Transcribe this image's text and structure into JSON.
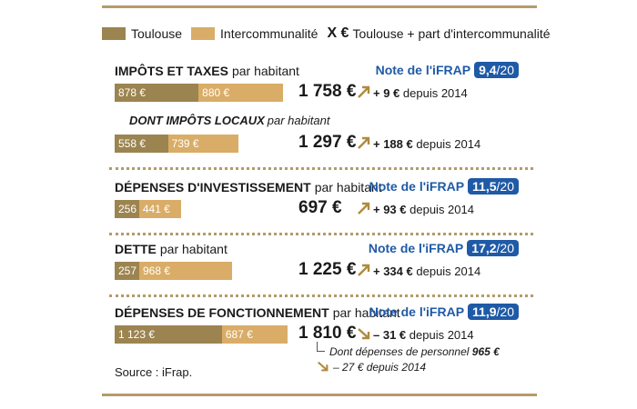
{
  "legend": {
    "toulouse": "Toulouse",
    "intercommunalite": "Intercommunalité",
    "x_symbol": "X €",
    "total_label": "Toulouse + part d'intercommunalité"
  },
  "colors": {
    "toulouse": "#9c8450",
    "intercommunalite": "#d9ad67",
    "note_blue": "#1f5aa6",
    "up_arrow": "#b08a3e",
    "down_arrow": "#b08a3e"
  },
  "sections": [
    {
      "title": "IMPÔTS ET TAXES",
      "per": "par habitant",
      "note_label": "Note de l'iFRAP",
      "note_value": "9,4",
      "note_of": "/20",
      "toulouse_label": "878 €",
      "interco_label": "880 €",
      "total": "1 758 €",
      "direction": "up",
      "delta_value": "+ 9 €",
      "delta_text": "depuis 2014"
    },
    {
      "title": "DONT IMPÔTS LOCAUX",
      "per": "par habitant",
      "toulouse_label": "558 €",
      "interco_label": "739 €",
      "total": "1 297 €",
      "direction": "up",
      "delta_value": "+ 188 €",
      "delta_text": "depuis 2014"
    },
    {
      "title": "DÉPENSES D'INVESTISSEMENT",
      "per": "par habitant",
      "note_label": "Note de l'iFRAP",
      "note_value": "11,5",
      "note_of": "/20",
      "toulouse_label": "256 €",
      "interco_label": "441 €",
      "total": "697 €",
      "direction": "up",
      "delta_value": "+ 93 €",
      "delta_text": "depuis 2014"
    },
    {
      "title": "DETTE",
      "per": "par habitant",
      "note_label": "Note de l'iFRAP",
      "note_value": "17,2",
      "note_of": "/20",
      "toulouse_label": "257 €",
      "interco_label": "968 €",
      "total": "1 225 €",
      "direction": "up",
      "delta_value": "+ 334 €",
      "delta_text": "depuis 2014"
    },
    {
      "title": "DÉPENSES DE FONCTIONNEMENT",
      "per": "par habitant",
      "note_label": "Note de l'iFRAP",
      "note_value": "11,9",
      "note_of": "/20",
      "toulouse_label": "1 123 €",
      "interco_label": "687 €",
      "total": "1 810 €",
      "direction": "down",
      "delta_value": "– 31 €",
      "delta_text": "depuis 2014"
    }
  ],
  "personnel_note": {
    "text": "Dont dépenses de personnel",
    "value": "965 €",
    "delta": "– 27 € depuis 2014"
  },
  "source": "Source : iFrap.",
  "chart_data": {
    "type": "bar",
    "orientation": "horizontal",
    "stacked": true,
    "unit": "€ par habitant",
    "categories": [
      "Impôts et taxes",
      "Dont impôts locaux",
      "Dépenses d'investissement",
      "Dette",
      "Dépenses de fonctionnement"
    ],
    "series": [
      {
        "name": "Toulouse",
        "values": [
          878,
          558,
          256,
          257,
          1123
        ]
      },
      {
        "name": "Intercommunalité",
        "values": [
          880,
          739,
          441,
          968,
          687
        ]
      }
    ],
    "totals": [
      1758,
      1297,
      697,
      1225,
      1810
    ],
    "change_since_2014": [
      9,
      188,
      93,
      334,
      -31
    ],
    "ifrap_scores": [
      9.4,
      null,
      11.5,
      17.2,
      11.9
    ],
    "personnel": {
      "value": 965,
      "change_since_2014": -27
    },
    "legend_position": "top"
  }
}
